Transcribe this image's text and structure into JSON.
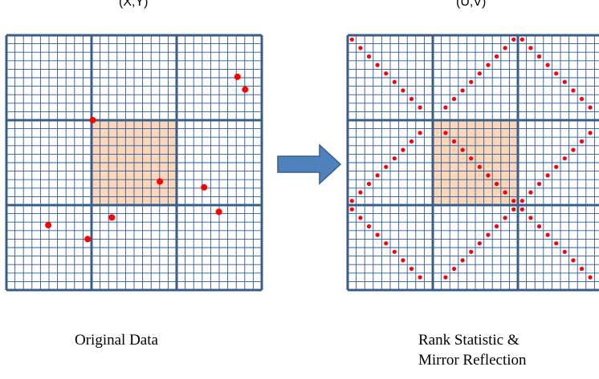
{
  "left_panel": {
    "title": "(X,Y)",
    "caption": "Original Data",
    "points": [
      [
        0.905,
        0.837
      ],
      [
        0.935,
        0.787
      ],
      [
        0.338,
        0.667
      ],
      [
        0.601,
        0.426
      ],
      [
        0.774,
        0.403
      ],
      [
        0.832,
        0.307
      ],
      [
        0.413,
        0.285
      ],
      [
        0.164,
        0.255
      ],
      [
        0.318,
        0.2
      ]
    ]
  },
  "right_panel": {
    "title": "(U,V)",
    "caption_line1": "Rank Statistic &",
    "caption_line2": "Mirror Reflection",
    "base_ranks": [
      0.15,
      0.25,
      0.35,
      0.45,
      0.55,
      0.65,
      0.75,
      0.85,
      0.95
    ]
  },
  "arrow": {
    "direction": "right"
  },
  "colors": {
    "grid_line": "#2f5897",
    "grid_thick": "#385d8a",
    "highlight_fill": "#fad7b8",
    "point": "#ff0000",
    "arrow_fill": "#4f81bd",
    "arrow_stroke": "#385d8a"
  }
}
